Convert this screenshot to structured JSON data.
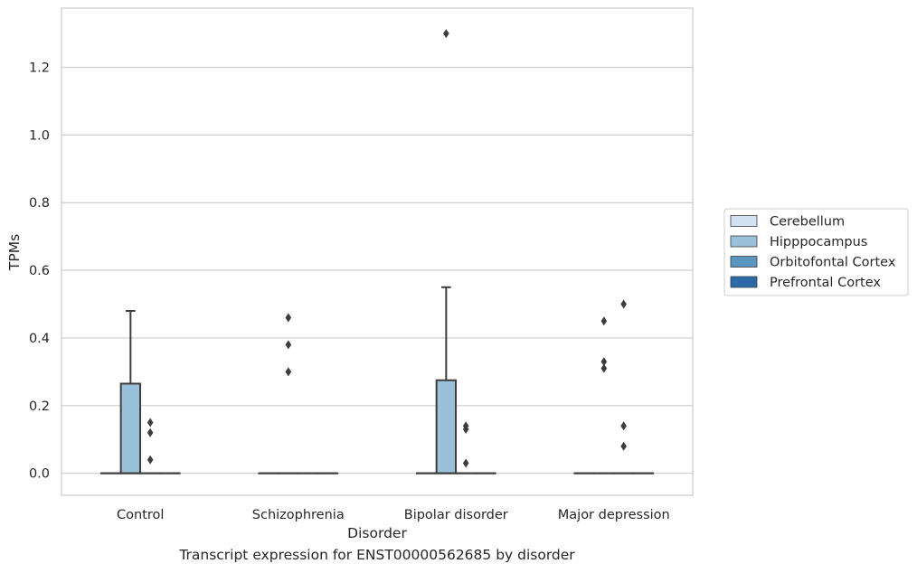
{
  "chart_data": {
    "type": "box",
    "xlabel": "Disorder",
    "ylabel": "TPMs",
    "caption": "Transcript expression for ENST00000562685 by disorder",
    "ylim": [
      -0.065,
      1.375
    ],
    "yticks": [
      0.0,
      0.2,
      0.4,
      0.6,
      0.8,
      1.0,
      1.2
    ],
    "ytick_labels": [
      "0.0",
      "0.2",
      "0.4",
      "0.6",
      "0.8",
      "1.0",
      "1.2"
    ],
    "grid": "horizontal",
    "legend_position": "right",
    "categories": [
      "Control",
      "Schizophrenia",
      "Bipolar disorder",
      "Major depression"
    ],
    "series": [
      {
        "name": "Cerebellum",
        "color": "#d1e1f0",
        "boxes": [
          {
            "q1": 0,
            "median": 0,
            "q3": 0,
            "whisker_low": 0,
            "whisker_high": 0,
            "outliers": []
          },
          {
            "q1": 0,
            "median": 0,
            "q3": 0,
            "whisker_low": 0,
            "whisker_high": 0,
            "outliers": []
          },
          {
            "q1": 0,
            "median": 0,
            "q3": 0,
            "whisker_low": 0,
            "whisker_high": 0,
            "outliers": []
          },
          {
            "q1": 0,
            "median": 0,
            "q3": 0,
            "whisker_low": 0,
            "whisker_high": 0,
            "outliers": []
          }
        ]
      },
      {
        "name": "Hipppocampus",
        "color": "#9bc0d9",
        "boxes": [
          {
            "q1": 0,
            "median": 0,
            "q3": 0.265,
            "whisker_low": 0,
            "whisker_high": 0.48,
            "outliers": []
          },
          {
            "q1": 0,
            "median": 0,
            "q3": 0,
            "whisker_low": 0,
            "whisker_high": 0,
            "outliers": [
              0.3,
              0.38,
              0.46
            ]
          },
          {
            "q1": 0,
            "median": 0,
            "q3": 0.275,
            "whisker_low": 0,
            "whisker_high": 0.55,
            "outliers": [
              1.3
            ]
          },
          {
            "q1": 0,
            "median": 0,
            "q3": 0,
            "whisker_low": 0,
            "whisker_high": 0,
            "outliers": [
              0.31,
              0.33,
              0.45
            ]
          }
        ]
      },
      {
        "name": "Orbitofontal Cortex",
        "color": "#5b96c1",
        "boxes": [
          {
            "q1": 0,
            "median": 0,
            "q3": 0,
            "whisker_low": 0,
            "whisker_high": 0,
            "outliers": [
              0.04,
              0.12,
              0.15
            ]
          },
          {
            "q1": 0,
            "median": 0,
            "q3": 0,
            "whisker_low": 0,
            "whisker_high": 0,
            "outliers": []
          },
          {
            "q1": 0,
            "median": 0,
            "q3": 0,
            "whisker_low": 0,
            "whisker_high": 0,
            "outliers": [
              0.03,
              0.13,
              0.14
            ]
          },
          {
            "q1": 0,
            "median": 0,
            "q3": 0,
            "whisker_low": 0,
            "whisker_high": 0,
            "outliers": [
              0.08,
              0.14,
              0.5
            ]
          }
        ]
      },
      {
        "name": "Prefrontal Cortex",
        "color": "#2b6aa6",
        "boxes": [
          {
            "q1": 0,
            "median": 0,
            "q3": 0,
            "whisker_low": 0,
            "whisker_high": 0,
            "outliers": []
          },
          {
            "q1": 0,
            "median": 0,
            "q3": 0,
            "whisker_low": 0,
            "whisker_high": 0,
            "outliers": []
          },
          {
            "q1": 0,
            "median": 0,
            "q3": 0,
            "whisker_low": 0,
            "whisker_high": 0,
            "outliers": []
          },
          {
            "q1": 0,
            "median": 0,
            "q3": 0,
            "whisker_low": 0,
            "whisker_high": 0,
            "outliers": []
          }
        ]
      }
    ]
  }
}
